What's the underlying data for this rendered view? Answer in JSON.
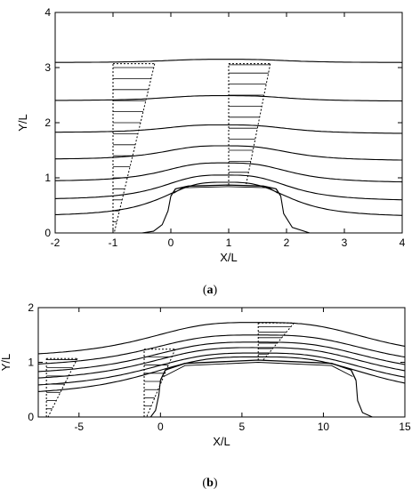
{
  "chart_data": [
    {
      "type": "line",
      "caption_letter": "a",
      "xlabel": "X/L",
      "ylabel": "Y/L",
      "xlim": [
        -2,
        4
      ],
      "ylim": [
        0,
        4
      ],
      "xticks": [
        -2,
        -1,
        0,
        1,
        2,
        3,
        4
      ],
      "yticks": [
        0,
        1,
        2,
        3,
        4
      ],
      "hill": [
        [
          0,
          0.67
        ],
        [
          0.08,
          0.8
        ],
        [
          0.3,
          0.85
        ],
        [
          1.0,
          0.87
        ],
        [
          1.6,
          0.85
        ],
        [
          1.82,
          0.8
        ],
        [
          1.9,
          0.67
        ]
      ],
      "hill_inner": [
        [
          0.05,
          0.72
        ],
        [
          0.2,
          0.82
        ],
        [
          1.0,
          0.84
        ],
        [
          1.7,
          0.82
        ],
        [
          1.85,
          0.72
        ]
      ],
      "separation_lines": [
        [
          [
            0,
            0.67
          ],
          [
            -0.05,
            0.4
          ],
          [
            -0.15,
            0.15
          ],
          [
            -0.3,
            0.03
          ],
          [
            -0.5,
            0
          ]
        ],
        [
          [
            1.9,
            0.67
          ],
          [
            1.95,
            0.35
          ],
          [
            2.1,
            0.1
          ],
          [
            2.4,
            0
          ]
        ]
      ],
      "streamlines": [
        {
          "y_in": 3.09,
          "y_top": 3.15,
          "y_out": 3.09
        },
        {
          "y_in": 2.4,
          "y_top": 2.49,
          "y_out": 2.39
        },
        {
          "y_in": 1.82,
          "y_top": 1.96,
          "y_out": 1.8
        },
        {
          "y_in": 1.33,
          "y_top": 1.58,
          "y_out": 1.31
        },
        {
          "y_in": 0.93,
          "y_top": 1.27,
          "y_out": 0.91
        },
        {
          "y_in": 0.6,
          "y_top": 1.05,
          "y_out": 0.58
        },
        {
          "y_in": 0.3,
          "y_top": 0.92,
          "y_out": 0.29
        }
      ],
      "profiles": [
        {
          "x0": -1,
          "ytop": 3.07,
          "width_top": 0.72,
          "width_bottom": 0.02,
          "levels": [
            0.2,
            0.4,
            0.6,
            0.8,
            1.0,
            1.2,
            1.4,
            1.6,
            1.8,
            2.0,
            2.2,
            2.4,
            2.6,
            2.8,
            3.0
          ]
        },
        {
          "x0": 1,
          "ytop": 3.07,
          "width_top": 0.72,
          "width_bottom": 0.3,
          "ybottom": 0.87,
          "levels": [
            1.1,
            1.3,
            1.5,
            1.7,
            1.9,
            2.1,
            2.3,
            2.5,
            2.7,
            2.9,
            3.05
          ]
        }
      ]
    },
    {
      "type": "line",
      "caption_letter": "b",
      "xlabel": "X/L",
      "ylabel": "Y/L",
      "xlim": [
        -7.5,
        15
      ],
      "ylim": [
        0,
        2
      ],
      "xticks": [
        -5,
        0,
        5,
        10,
        15
      ],
      "yticks": [
        0,
        1,
        2
      ],
      "hill": [
        [
          0,
          0.67
        ],
        [
          0.3,
          0.86
        ],
        [
          1.5,
          0.98
        ],
        [
          6,
          1.04
        ],
        [
          10.5,
          0.98
        ],
        [
          11.7,
          0.86
        ],
        [
          12,
          0.67
        ]
      ],
      "hill_inner": [
        [
          0.2,
          0.74
        ],
        [
          1.5,
          0.94
        ],
        [
          6,
          1.0
        ],
        [
          10.5,
          0.94
        ],
        [
          11.8,
          0.74
        ]
      ],
      "separation_lines": [
        [
          [
            0,
            0.67
          ],
          [
            -0.1,
            0.4
          ],
          [
            -0.3,
            0.12
          ],
          [
            -0.6,
            0
          ]
        ],
        [
          [
            12,
            0.67
          ],
          [
            12.1,
            0.3
          ],
          [
            12.4,
            0.08
          ],
          [
            13,
            0
          ]
        ]
      ],
      "streamlines": [
        {
          "y_in": 1.07,
          "y_top": 1.73,
          "y_out": 1.06
        },
        {
          "y_in": 0.89,
          "y_top": 1.5,
          "y_out": 0.88
        },
        {
          "y_in": 0.75,
          "y_top": 1.37,
          "y_out": 0.74
        },
        {
          "y_in": 0.63,
          "y_top": 1.27,
          "y_out": 0.62
        },
        {
          "y_in": 0.5,
          "y_top": 1.17,
          "y_out": 0.49
        },
        {
          "y_in": 0.37,
          "y_top": 1.1,
          "y_out": 0.36
        }
      ],
      "profiles": [
        {
          "x0": -7,
          "ytop": 1.07,
          "width_top": 1.9,
          "width_bottom": 0.1,
          "levels": [
            0.15,
            0.3,
            0.45,
            0.6,
            0.75,
            0.9,
            1.05
          ]
        },
        {
          "x0": -1,
          "ytop": 1.24,
          "width_top": 1.9,
          "width_bottom": 0.15,
          "levels": [
            0.2,
            0.35,
            0.5,
            0.65,
            0.8,
            0.95,
            1.1
          ]
        },
        {
          "x0": 6,
          "ytop": 1.72,
          "width_top": 2.2,
          "width_bottom": 0.3,
          "ybottom": 1.04,
          "levels": [
            1.15,
            1.25,
            1.35,
            1.45,
            1.55,
            1.65
          ]
        }
      ]
    }
  ]
}
